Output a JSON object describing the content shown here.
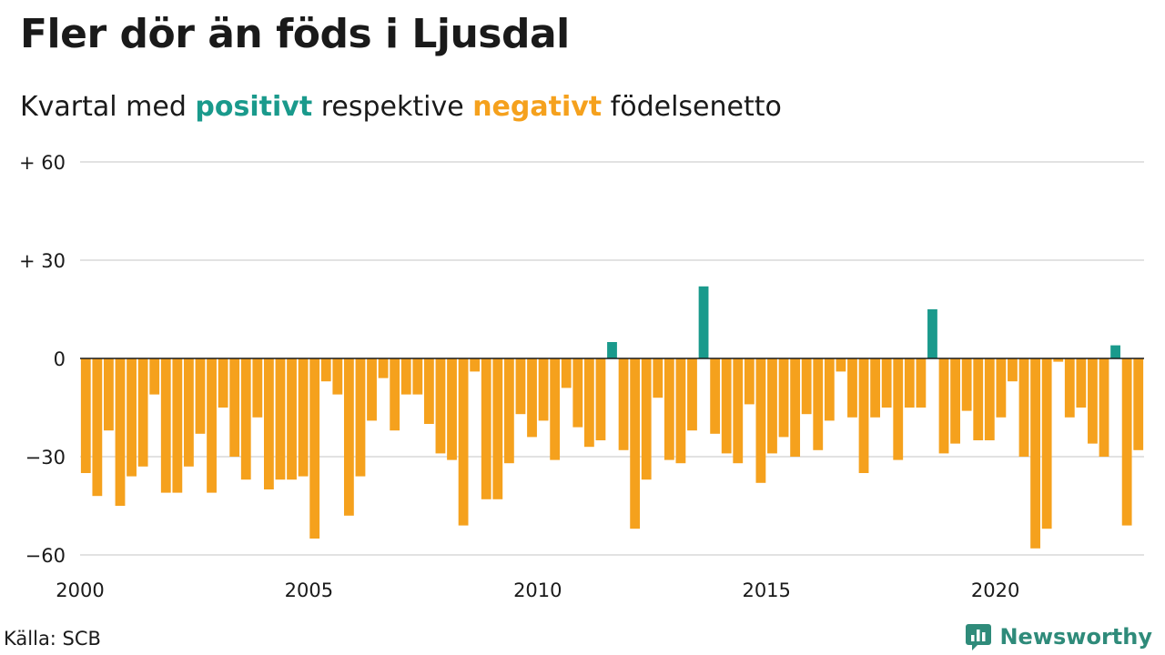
{
  "title": "Fler dör än föds i Ljusdal",
  "subtitle": {
    "prefix": "Kvartal med ",
    "positive": "positivt",
    "middle": " respektive ",
    "negative": "negativt",
    "suffix": " födelsenetto"
  },
  "source": "Källa: SCB",
  "brand": {
    "name": "Newsworthy",
    "icon": "bar-chart-bubble-icon",
    "color": "#2f8b7a"
  },
  "colors": {
    "positive": "#1a9a8c",
    "negative": "#f5a11d"
  },
  "chart_data": {
    "type": "bar",
    "title": "Fler dör än föds i Ljusdal",
    "subtitle": "Kvartal med positivt respektive negativt födelsenetto",
    "x_start": "2000 Q1",
    "x_ticks": [
      "2000",
      "2005",
      "2010",
      "2015",
      "2020"
    ],
    "y_ticks": [
      {
        "value": 60,
        "label": "+ 60"
      },
      {
        "value": 30,
        "label": "+ 30"
      },
      {
        "value": 0,
        "label": "0"
      },
      {
        "value": -30,
        "label": "−30"
      },
      {
        "value": -60,
        "label": "−60"
      }
    ],
    "ylim": [
      -60,
      60
    ],
    "grid": true,
    "values": [
      -35,
      -42,
      -22,
      -45,
      -36,
      -33,
      -11,
      -41,
      -41,
      -33,
      -23,
      -41,
      -15,
      -30,
      -37,
      -18,
      -40,
      -37,
      -37,
      -36,
      -55,
      -7,
      -11,
      -48,
      -36,
      -19,
      -6,
      -22,
      -11,
      -11,
      -20,
      -29,
      -31,
      -51,
      -4,
      -43,
      -43,
      -32,
      -17,
      -24,
      -19,
      -31,
      -9,
      -21,
      -27,
      -25,
      5,
      -28,
      -52,
      -37,
      -12,
      -31,
      -32,
      -22,
      22,
      -23,
      -29,
      -32,
      -14,
      -38,
      -29,
      -24,
      -30,
      -17,
      -28,
      -19,
      -4,
      -18,
      -35,
      -18,
      -15,
      -31,
      -15,
      -15,
      15,
      -29,
      -26,
      -16,
      -25,
      -25,
      -18,
      -7,
      -30,
      -58,
      -52,
      -1,
      -18,
      -15,
      -26,
      -30,
      4,
      -51,
      -28
    ]
  }
}
